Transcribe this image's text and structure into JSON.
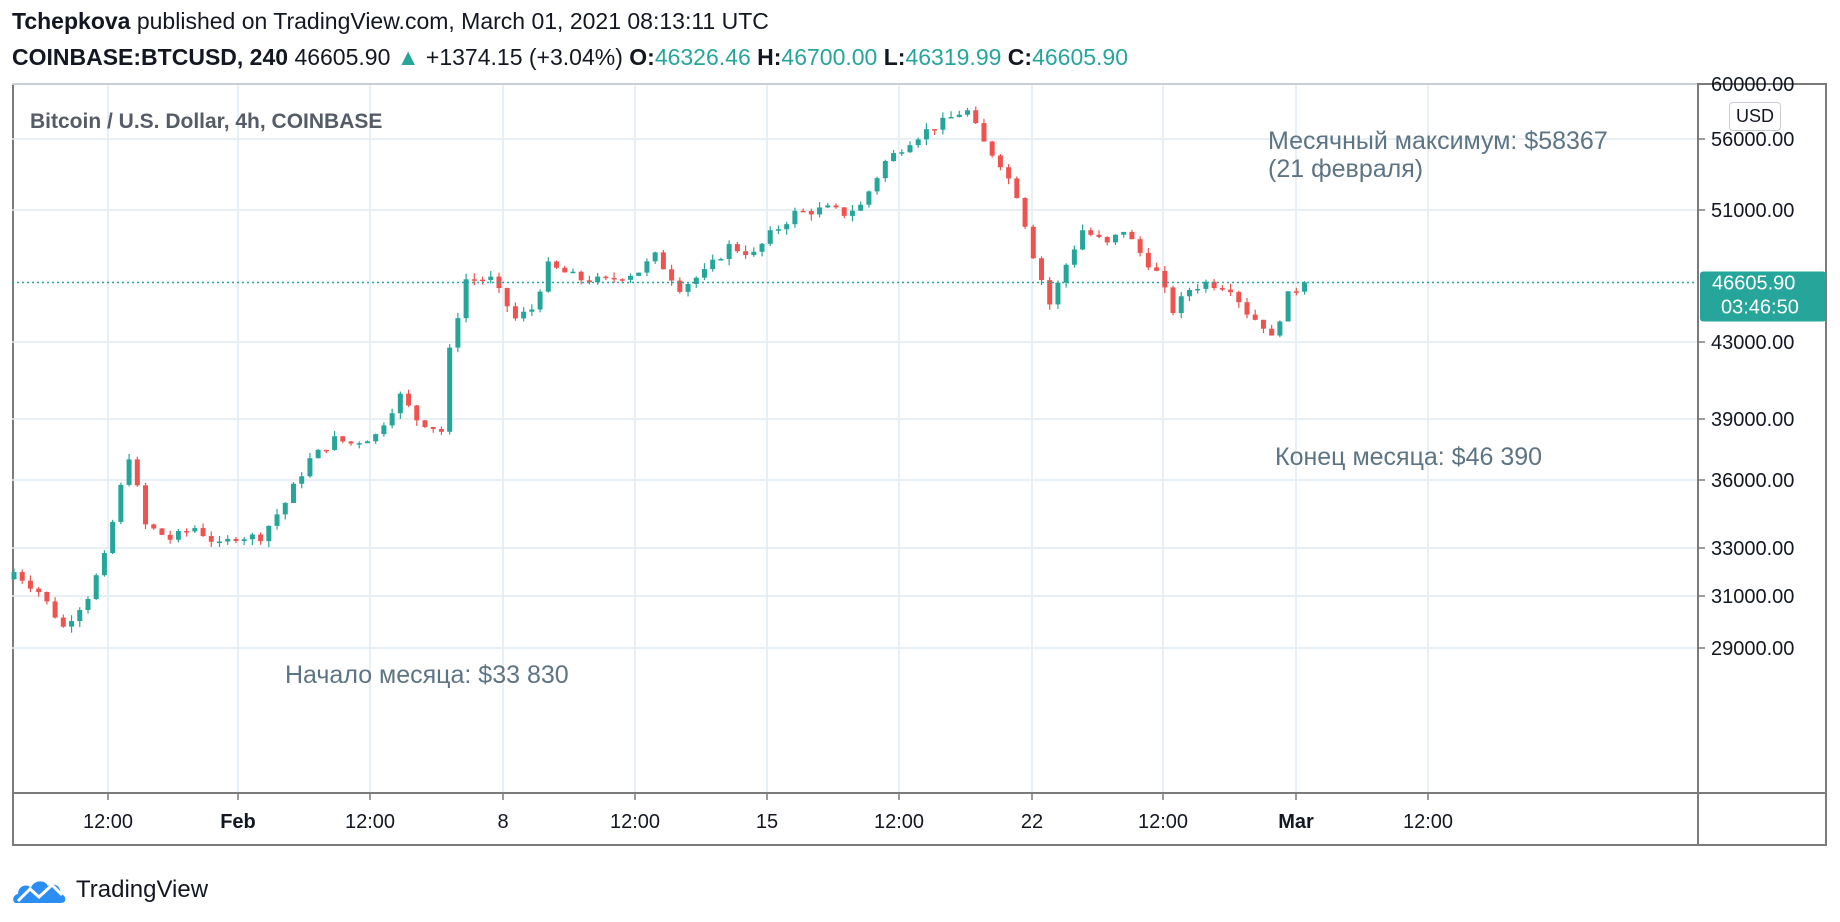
{
  "header": {
    "author": "Tchepkova",
    "published_text": "published on TradingView.com, March 01, 2021 08:13:11 UTC",
    "symbol": "COINBASE:BTCUSD, 240",
    "last_price": "46605.90",
    "change": "+1374.15 (+3.04%)",
    "open_label": "O:",
    "open": "46326.46",
    "high_label": "H:",
    "high": "46700.00",
    "low_label": "L:",
    "low": "46319.99",
    "close_label": "C:",
    "close": "46605.90"
  },
  "chart_title": "Bitcoin / U.S. Dollar, 4h, COINBASE",
  "currency_button": "USD",
  "price_label": {
    "price": "46605.90",
    "countdown": "03:46:50"
  },
  "annotations": {
    "month_high_line1": "Месячный максимум: $58367",
    "month_high_line2": "(21 февраля)",
    "month_end": "Конец месяца: $46 390",
    "month_start": "Начало месяца: $33 830"
  },
  "brand": "TradingView",
  "colors": {
    "up": "#26a69a",
    "down": "#ef5350",
    "grid": "#e1ecf2",
    "last_line": "#26a69a"
  },
  "chart_data": {
    "type": "candlestick",
    "title": "Bitcoin / U.S. Dollar, 4h, COINBASE",
    "y_ticks": [
      60000,
      56000,
      51000,
      46605.9,
      43000,
      39000,
      36000,
      33000,
      31000,
      29000
    ],
    "y_tick_labels": [
      "60000.00",
      "56000.00",
      "51000.00",
      "43000.00",
      "39000.00",
      "36000.00",
      "33000.00",
      "31000.00",
      "29000.00"
    ],
    "x_tick_labels": [
      "12:00",
      "Feb",
      "12:00",
      "8",
      "12:00",
      "15",
      "12:00",
      "22",
      "12:00",
      "Mar",
      "12:00"
    ],
    "bold_x_ticks": [
      "Feb",
      "Mar"
    ],
    "ylim": [
      27800,
      61400
    ],
    "last_price": 46605.9,
    "close_path": [
      [
        0,
        32000
      ],
      [
        3,
        31200
      ],
      [
        6,
        29800
      ],
      [
        9,
        31000
      ],
      [
        11,
        32600
      ],
      [
        14,
        37200
      ],
      [
        16,
        34000
      ],
      [
        19,
        33400
      ],
      [
        22,
        33900
      ],
      [
        25,
        33100
      ],
      [
        27,
        33500
      ],
      [
        30,
        33500
      ],
      [
        33,
        35000
      ],
      [
        36,
        37000
      ],
      [
        39,
        38000
      ],
      [
        41,
        37800
      ],
      [
        44,
        38200
      ],
      [
        47,
        40200
      ],
      [
        49,
        39000
      ],
      [
        52,
        38400
      ],
      [
        53,
        42500
      ],
      [
        55,
        46800
      ],
      [
        58,
        46800
      ],
      [
        61,
        44400
      ],
      [
        63,
        45000
      ],
      [
        65,
        47600
      ],
      [
        69,
        46800
      ],
      [
        72,
        46700
      ],
      [
        76,
        47300
      ],
      [
        78,
        48200
      ],
      [
        81,
        46300
      ],
      [
        84,
        47200
      ],
      [
        87,
        48800
      ],
      [
        90,
        48300
      ],
      [
        92,
        49500
      ],
      [
        95,
        50800
      ],
      [
        99,
        51100
      ],
      [
        101,
        50800
      ],
      [
        103,
        51300
      ],
      [
        106,
        54400
      ],
      [
        109,
        55900
      ],
      [
        111,
        56600
      ],
      [
        113,
        57200
      ],
      [
        115,
        57900
      ],
      [
        116,
        58000
      ],
      [
        118,
        55700
      ],
      [
        120,
        54300
      ],
      [
        122,
        52100
      ],
      [
        124,
        48300
      ],
      [
        126,
        45300
      ],
      [
        128,
        47700
      ],
      [
        130,
        49800
      ],
      [
        133,
        48900
      ],
      [
        135,
        49800
      ],
      [
        137,
        48400
      ],
      [
        139,
        47200
      ],
      [
        141,
        44900
      ],
      [
        143,
        46200
      ],
      [
        145,
        46600
      ],
      [
        148,
        46300
      ],
      [
        150,
        44800
      ],
      [
        152,
        44000
      ],
      [
        153,
        43200
      ],
      [
        154,
        44500
      ],
      [
        155,
        45800
      ],
      [
        157,
        46600
      ]
    ]
  }
}
